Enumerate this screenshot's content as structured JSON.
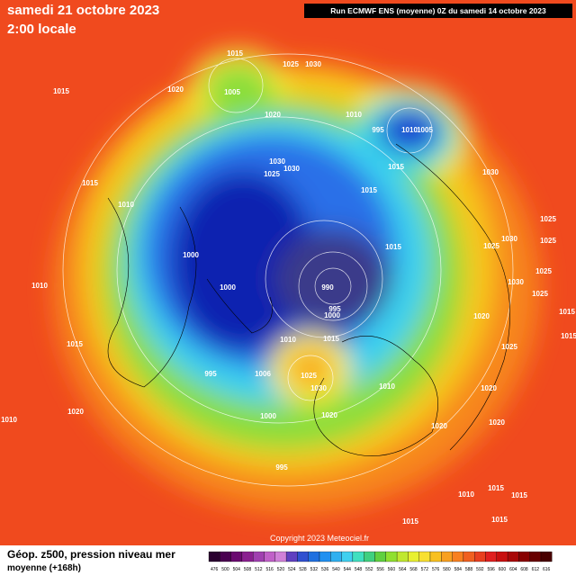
{
  "header": {
    "date": "samedi 21 octobre 2023",
    "time": "2:00 locale",
    "run": "Run ECMWF ENS (moyenne) 0Z du samedi 14 octobre 2023"
  },
  "footer": {
    "title": "Géop. z500, pression niveau mer",
    "subtitle": "moyenne  (+168h)",
    "copyright": "Copyright 2023 Meteociel.fr"
  },
  "colorbar_labels": [
    "476",
    "500",
    "504",
    "508",
    "512",
    "516",
    "520",
    "524",
    "528",
    "532",
    "536",
    "540",
    "544",
    "548",
    "552",
    "556",
    "560",
    "564",
    "568",
    "572",
    "576",
    "580",
    "584",
    "588",
    "592",
    "596",
    "600",
    "604",
    "608",
    "612",
    "616"
  ],
  "isobar_labels": [
    "1015",
    "1015",
    "1025",
    "1030",
    "1020",
    "1005",
    "1020",
    "1010",
    "995",
    "1010",
    "1005",
    "1015",
    "1030",
    "1030",
    "1025",
    "1015",
    "1030",
    "1015",
    "1010",
    "1025",
    "1030",
    "1025",
    "1025",
    "1015",
    "1000",
    "1025",
    "1030",
    "1010",
    "1000",
    "990",
    "995",
    "1000",
    "1025",
    "1015",
    "1020",
    "1010",
    "1015",
    "1015",
    "1025",
    "1015",
    "995",
    "1006",
    "1025",
    "1030",
    "1010",
    "1020",
    "1000",
    "1020",
    "1010",
    "1020",
    "1020",
    "1020",
    "995",
    "1010",
    "1015",
    "1015",
    "1015",
    "1015"
  ]
}
